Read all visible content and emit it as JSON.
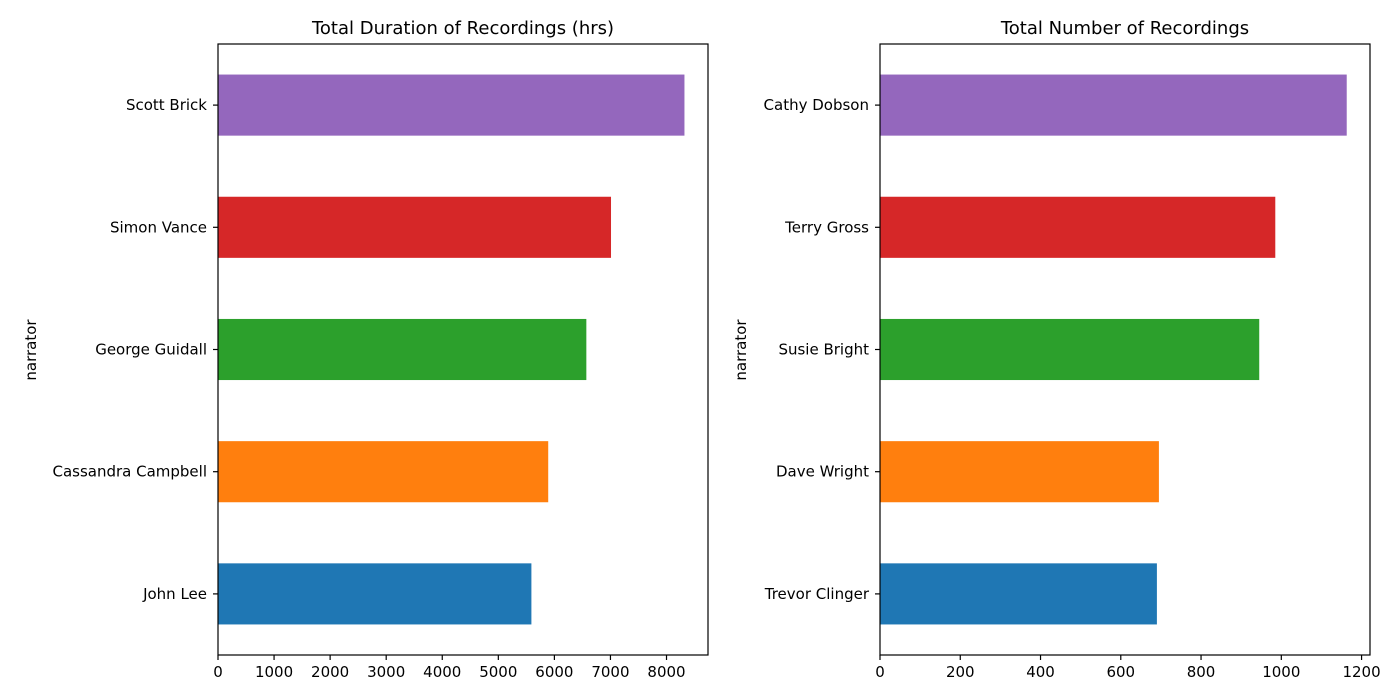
{
  "chart_data": [
    {
      "type": "bar",
      "orientation": "horizontal",
      "title": "Total Duration of Recordings (hrs)",
      "ylabel": "narrator",
      "xlabel": "",
      "categories": [
        "John Lee",
        "Cassandra Campbell",
        "George Guidall",
        "Simon Vance",
        "Scott Brick"
      ],
      "values": [
        5590,
        5890,
        6570,
        7010,
        8320
      ],
      "xlim": [
        0,
        8740
      ],
      "xticks": [
        0,
        1000,
        2000,
        3000,
        4000,
        5000,
        6000,
        7000,
        8000
      ],
      "colors": [
        "#1f77b4",
        "#ff7f0e",
        "#2ca02c",
        "#d62728",
        "#9467bd"
      ],
      "grid": false,
      "legend": "none"
    },
    {
      "type": "bar",
      "orientation": "horizontal",
      "title": "Total Number of Recordings",
      "ylabel": "narrator",
      "xlabel": "",
      "categories": [
        "Trevor Clinger",
        "Dave Wright",
        "Susie Bright",
        "Terry Gross",
        "Cathy Dobson"
      ],
      "values": [
        690,
        695,
        945,
        985,
        1163
      ],
      "xlim": [
        0,
        1221
      ],
      "xticks": [
        0,
        200,
        400,
        600,
        800,
        1000,
        1200
      ],
      "colors": [
        "#1f77b4",
        "#ff7f0e",
        "#2ca02c",
        "#d62728",
        "#9467bd"
      ],
      "grid": false,
      "legend": "none"
    }
  ]
}
